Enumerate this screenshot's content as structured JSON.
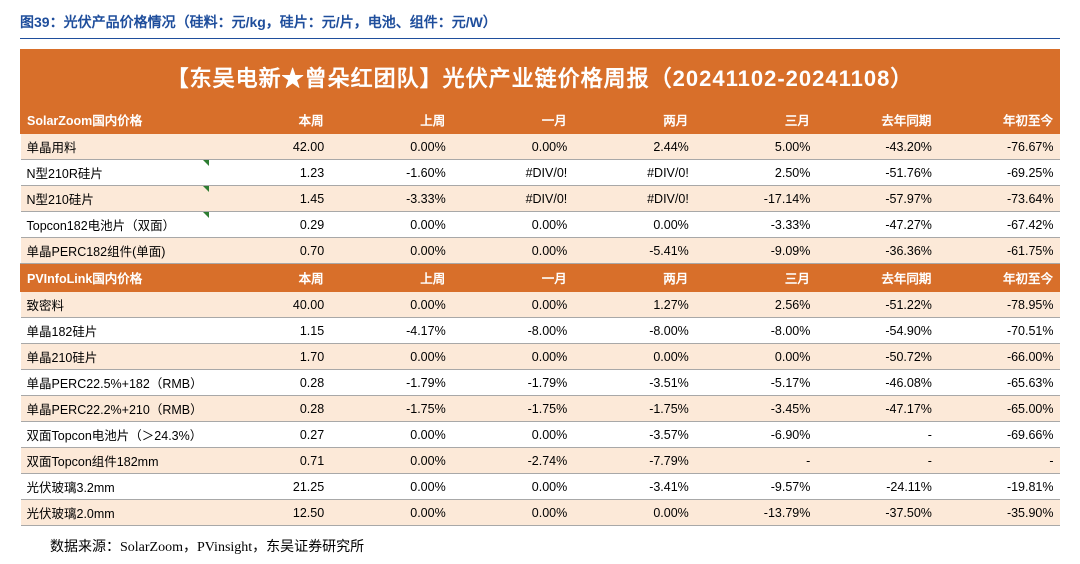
{
  "figure_title": "图39：光伏产品价格情况（硅料：元/kg，硅片：元/片，电池、组件：元/W）",
  "banner": "【东吴电新★曾朵红团队】光伏产业链价格周报（20241102-20241108）",
  "source_note": "数据来源：SolarZoom，PVinsight，东吴证券研究所",
  "colors": {
    "header_bg": "#d86f2a",
    "header_fg": "#ffffff",
    "row_even_bg": "#fce9d8",
    "row_odd_bg": "#ffffff",
    "title_color": "#1f4e9c",
    "border_color": "#a8a8a8",
    "corner_mark": "#2e7d32"
  },
  "font": {
    "title_size": 14,
    "banner_size": 22,
    "body_size": 12.5,
    "source_size": 14
  },
  "sections": [
    {
      "header": [
        "SolarZoom国内价格",
        "本周",
        "上周",
        "一月",
        "两月",
        "三月",
        "去年同期",
        "年初至今"
      ],
      "rows": [
        {
          "label": "单晶用料",
          "mark": false,
          "cells": [
            "42.00",
            "0.00%",
            "0.00%",
            "2.44%",
            "5.00%",
            "-43.20%",
            "-76.67%"
          ]
        },
        {
          "label": "N型210R硅片",
          "mark": true,
          "cells": [
            "1.23",
            "-1.60%",
            "#DIV/0!",
            "#DIV/0!",
            "2.50%",
            "-51.76%",
            "-69.25%"
          ]
        },
        {
          "label": "N型210硅片",
          "mark": true,
          "cells": [
            "1.45",
            "-3.33%",
            "#DIV/0!",
            "#DIV/0!",
            "-17.14%",
            "-57.97%",
            "-73.64%"
          ]
        },
        {
          "label": "Topcon182电池片（双面）",
          "mark": true,
          "cells": [
            "0.29",
            "0.00%",
            "0.00%",
            "0.00%",
            "-3.33%",
            "-47.27%",
            "-67.42%"
          ]
        },
        {
          "label": "单晶PERC182组件(单面)",
          "mark": false,
          "cells": [
            "0.70",
            "0.00%",
            "0.00%",
            "-5.41%",
            "-9.09%",
            "-36.36%",
            "-61.75%"
          ]
        }
      ]
    },
    {
      "header": [
        "PVInfoLink国内价格",
        "本周",
        "上周",
        "一月",
        "两月",
        "三月",
        "去年同期",
        "年初至今"
      ],
      "rows": [
        {
          "label": "致密料",
          "mark": false,
          "cells": [
            "40.00",
            "0.00%",
            "0.00%",
            "1.27%",
            "2.56%",
            "-51.22%",
            "-78.95%"
          ]
        },
        {
          "label": "单晶182硅片",
          "mark": false,
          "cells": [
            "1.15",
            "-4.17%",
            "-8.00%",
            "-8.00%",
            "-8.00%",
            "-54.90%",
            "-70.51%"
          ]
        },
        {
          "label": "单晶210硅片",
          "mark": false,
          "cells": [
            "1.70",
            "0.00%",
            "0.00%",
            "0.00%",
            "0.00%",
            "-50.72%",
            "-66.00%"
          ]
        },
        {
          "label": "单晶PERC22.5%+182（RMB）",
          "mark": false,
          "cells": [
            "0.28",
            "-1.79%",
            "-1.79%",
            "-3.51%",
            "-5.17%",
            "-46.08%",
            "-65.63%"
          ]
        },
        {
          "label": "单晶PERC22.2%+210（RMB）",
          "mark": false,
          "cells": [
            "0.28",
            "-1.75%",
            "-1.75%",
            "-1.75%",
            "-3.45%",
            "-47.17%",
            "-65.00%"
          ]
        },
        {
          "label": "双面Topcon电池片（＞24.3%）",
          "mark": false,
          "cells": [
            "0.27",
            "0.00%",
            "0.00%",
            "-3.57%",
            "-6.90%",
            "-",
            "-69.66%"
          ]
        },
        {
          "label": "双面Topcon组件182mm",
          "mark": false,
          "cells": [
            "0.71",
            "0.00%",
            "-2.74%",
            "-7.79%",
            "-",
            "-",
            "-"
          ]
        },
        {
          "label": "光伏玻璃3.2mm",
          "mark": false,
          "cells": [
            "21.25",
            "0.00%",
            "0.00%",
            "-3.41%",
            "-9.57%",
            "-24.11%",
            "-19.81%"
          ]
        },
        {
          "label": "光伏玻璃2.0mm",
          "mark": false,
          "cells": [
            "12.50",
            "0.00%",
            "0.00%",
            "0.00%",
            "-13.79%",
            "-37.50%",
            "-35.90%"
          ]
        }
      ]
    }
  ]
}
